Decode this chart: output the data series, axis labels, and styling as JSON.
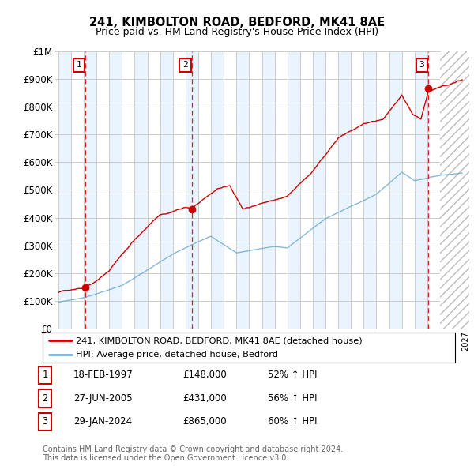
{
  "title1": "241, KIMBOLTON ROAD, BEDFORD, MK41 8AE",
  "title2": "Price paid vs. HM Land Registry's House Price Index (HPI)",
  "ylim": [
    0,
    1000000
  ],
  "yticks": [
    0,
    100000,
    200000,
    300000,
    400000,
    500000,
    600000,
    700000,
    800000,
    900000,
    1000000
  ],
  "ytick_labels": [
    "£0",
    "£100K",
    "£200K",
    "£300K",
    "£400K",
    "£500K",
    "£600K",
    "£700K",
    "£800K",
    "£900K",
    "£1M"
  ],
  "sales": [
    {
      "date_num": 1997.12,
      "price": 148000,
      "label": "1"
    },
    {
      "date_num": 2005.49,
      "price": 431000,
      "label": "2"
    },
    {
      "date_num": 2024.08,
      "price": 865000,
      "label": "3"
    }
  ],
  "legend_line1": "241, KIMBOLTON ROAD, BEDFORD, MK41 8AE (detached house)",
  "legend_line2": "HPI: Average price, detached house, Bedford",
  "table_rows": [
    {
      "num": "1",
      "date": "18-FEB-1997",
      "price": "£148,000",
      "change": "52% ↑ HPI"
    },
    {
      "num": "2",
      "date": "27-JUN-2005",
      "price": "£431,000",
      "change": "56% ↑ HPI"
    },
    {
      "num": "3",
      "date": "29-JAN-2024",
      "price": "£865,000",
      "change": "60% ↑ HPI"
    }
  ],
  "footer": "Contains HM Land Registry data © Crown copyright and database right 2024.\nThis data is licensed under the Open Government Licence v3.0.",
  "price_line_color": "#cc0000",
  "hpi_line_color": "#7ab0d4",
  "bg_shade_color": "#ddeeff",
  "sale_marker_color": "#cc0000",
  "dashed_line_color": "#cc0000",
  "grid_color": "#cccccc",
  "box_color": "#cc0000"
}
